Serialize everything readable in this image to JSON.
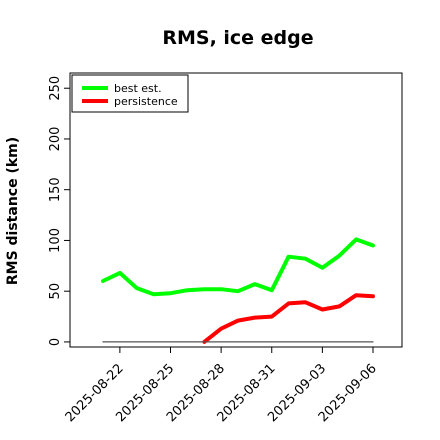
{
  "chart_data": {
    "type": "line",
    "title": "RMS, ice edge",
    "ylabel": "RMS distance (km)",
    "xlabel": "",
    "ylim": [
      -5,
      265
    ],
    "yticks": [
      0,
      50,
      100,
      150,
      200,
      250
    ],
    "x_date_ticks": [
      "2025-08-22",
      "2025-08-25",
      "2025-08-28",
      "2025-08-31",
      "2025-09-03",
      "2025-09-06"
    ],
    "grid": false,
    "legend_position": "top-left",
    "series": [
      {
        "name": "best est.",
        "color": "#00ff00",
        "x": [
          "2025-08-21",
          "2025-08-22",
          "2025-08-23",
          "2025-08-24",
          "2025-08-25",
          "2025-08-26",
          "2025-08-27",
          "2025-08-28",
          "2025-08-29",
          "2025-08-30",
          "2025-08-31",
          "2025-09-01",
          "2025-09-02",
          "2025-09-03",
          "2025-09-04",
          "2025-09-05",
          "2025-09-06"
        ],
        "values": [
          60,
          68,
          53,
          47,
          48,
          51,
          52,
          52,
          50,
          57,
          51,
          84,
          82,
          73,
          85,
          101,
          95
        ]
      },
      {
        "name": "persistence",
        "color": "#ff0000",
        "x": [
          "2025-08-27",
          "2025-08-28",
          "2025-08-29",
          "2025-08-30",
          "2025-08-31",
          "2025-09-01",
          "2025-09-02",
          "2025-09-03",
          "2025-09-04",
          "2025-09-05",
          "2025-09-06"
        ],
        "values": [
          0,
          13,
          21,
          24,
          25,
          38,
          39,
          32,
          35,
          46,
          45
        ]
      },
      {
        "color": "#555555",
        "x": [
          "2025-08-21",
          "2025-09-06"
        ],
        "values": [
          0,
          0
        ]
      }
    ]
  }
}
